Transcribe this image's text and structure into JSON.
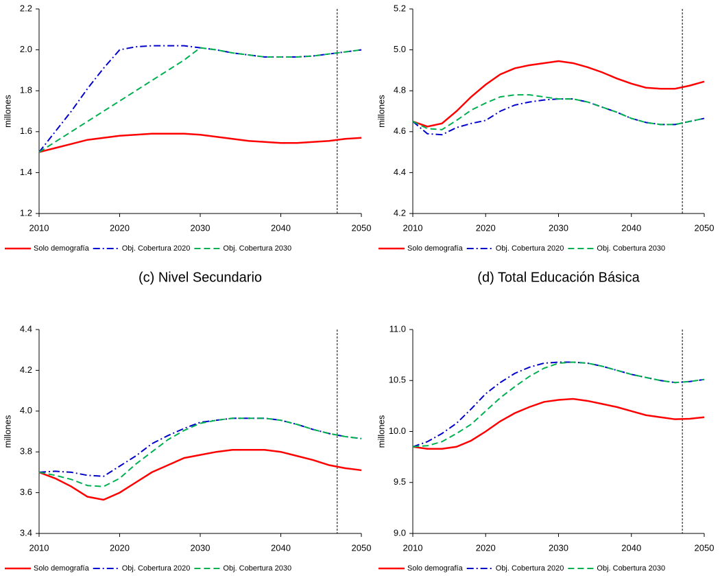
{
  "chart_data": [
    {
      "type": "line",
      "ylabel": "millones",
      "x": [
        2010,
        2012,
        2014,
        2016,
        2018,
        2020,
        2022,
        2024,
        2026,
        2028,
        2030,
        2032,
        2034,
        2036,
        2038,
        2040,
        2042,
        2044,
        2046,
        2048,
        2050
      ],
      "xlim": [
        2010,
        2050
      ],
      "xticks": [
        2010,
        2020,
        2030,
        2040,
        2050
      ],
      "ylim": [
        1.2,
        2.2
      ],
      "yticks": [
        1.2,
        1.4,
        1.6,
        1.8,
        {
          "value": 2,
          "label": "2.0"
        },
        2.2
      ],
      "vline_x": 2047,
      "series": [
        {
          "name": "Solo demografía",
          "color": "#ff0000",
          "line_style": "solid",
          "values": [
            1.5,
            1.52,
            1.54,
            1.56,
            1.57,
            1.58,
            1.585,
            1.59,
            1.59,
            1.59,
            1.585,
            1.575,
            1.565,
            1.555,
            1.55,
            1.545,
            1.545,
            1.55,
            1.555,
            1.565,
            1.57
          ]
        },
        {
          "name": "Obj. Cobertura 2020",
          "color": "#0000cc",
          "line_style": "dashdot",
          "values": [
            1.5,
            1.6,
            1.7,
            1.81,
            1.91,
            2.0,
            2.015,
            2.02,
            2.02,
            2.02,
            2.01,
            2.0,
            1.985,
            1.975,
            1.965,
            1.965,
            1.965,
            1.97,
            1.98,
            1.99,
            2.0
          ]
        },
        {
          "name": "Obj. Cobertura 2030",
          "color": "#00b050",
          "line_style": "dashed",
          "values": [
            1.5,
            1.55,
            1.6,
            1.65,
            1.7,
            1.75,
            1.8,
            1.85,
            1.9,
            1.95,
            2.01,
            2.0,
            1.985,
            1.975,
            1.965,
            1.965,
            1.965,
            1.97,
            1.98,
            1.99,
            2.0
          ]
        }
      ]
    },
    {
      "type": "line",
      "ylabel": "millones",
      "x": [
        2010,
        2012,
        2014,
        2016,
        2018,
        2020,
        2022,
        2024,
        2026,
        2028,
        2030,
        2032,
        2034,
        2036,
        2038,
        2040,
        2042,
        2044,
        2046,
        2048,
        2050
      ],
      "xlim": [
        2010,
        2050
      ],
      "xticks": [
        2010,
        2020,
        2030,
        2040,
        2050
      ],
      "ylim": [
        4.2,
        5.2
      ],
      "yticks": [
        4.2,
        4.4,
        4.6,
        4.8,
        {
          "value": 5,
          "label": "5.0"
        },
        5.2
      ],
      "vline_x": 2047,
      "series": [
        {
          "name": "Solo demografía",
          "color": "#ff0000",
          "line_style": "solid",
          "values": [
            4.65,
            4.625,
            4.64,
            4.7,
            4.77,
            4.83,
            4.88,
            4.91,
            4.925,
            4.935,
            4.945,
            4.935,
            4.915,
            4.89,
            4.86,
            4.835,
            4.815,
            4.81,
            4.81,
            4.825,
            4.845
          ]
        },
        {
          "name": "Obj. Cobertura 2020",
          "color": "#0000cc",
          "line_style": "dashdot",
          "values": [
            4.65,
            4.59,
            4.585,
            4.62,
            4.64,
            4.655,
            4.7,
            4.73,
            4.745,
            4.755,
            4.76,
            4.76,
            4.745,
            4.72,
            4.695,
            4.665,
            4.645,
            4.635,
            4.635,
            4.65,
            4.665
          ]
        },
        {
          "name": "Obj. Cobertura 2030",
          "color": "#00b050",
          "line_style": "dashed",
          "values": [
            4.65,
            4.615,
            4.61,
            4.655,
            4.705,
            4.74,
            4.77,
            4.78,
            4.78,
            4.77,
            4.76,
            4.76,
            4.745,
            4.72,
            4.695,
            4.665,
            4.645,
            4.635,
            4.635,
            4.65,
            4.665
          ]
        }
      ]
    },
    {
      "type": "line",
      "title": "(c) Nivel Secundario",
      "ylabel": "millones",
      "x": [
        2010,
        2012,
        2014,
        2016,
        2018,
        2020,
        2022,
        2024,
        2026,
        2028,
        2030,
        2032,
        2034,
        2036,
        2038,
        2040,
        2042,
        2044,
        2046,
        2048,
        2050
      ],
      "xlim": [
        2010,
        2050
      ],
      "xticks": [
        2010,
        2020,
        2030,
        2040,
        2050
      ],
      "ylim": [
        3.4,
        4.4
      ],
      "yticks": [
        3.4,
        3.6,
        3.8,
        {
          "value": 4,
          "label": "4.0"
        },
        4.2,
        4.4
      ],
      "vline_x": 2047,
      "series": [
        {
          "name": "Solo demografía",
          "color": "#ff0000",
          "line_style": "solid",
          "values": [
            3.7,
            3.67,
            3.63,
            3.58,
            3.565,
            3.6,
            3.65,
            3.7,
            3.735,
            3.77,
            3.785,
            3.8,
            3.81,
            3.81,
            3.81,
            3.8,
            3.78,
            3.76,
            3.735,
            3.72,
            3.71
          ]
        },
        {
          "name": "Obj. Cobertura 2020",
          "color": "#0000cc",
          "line_style": "dashdot",
          "values": [
            3.7,
            3.705,
            3.7,
            3.685,
            3.68,
            3.73,
            3.78,
            3.84,
            3.88,
            3.915,
            3.945,
            3.955,
            3.965,
            3.965,
            3.965,
            3.955,
            3.935,
            3.91,
            3.89,
            3.875,
            3.865
          ]
        },
        {
          "name": "Obj. Cobertura 2030",
          "color": "#00b050",
          "line_style": "dashed",
          "values": [
            3.7,
            3.685,
            3.665,
            3.635,
            3.63,
            3.67,
            3.74,
            3.8,
            3.86,
            3.905,
            3.94,
            3.955,
            3.965,
            3.965,
            3.965,
            3.955,
            3.935,
            3.91,
            3.89,
            3.875,
            3.865
          ]
        }
      ]
    },
    {
      "type": "line",
      "title": "(d) Total Educación Básica",
      "ylabel": "millones",
      "x": [
        2010,
        2012,
        2014,
        2016,
        2018,
        2020,
        2022,
        2024,
        2026,
        2028,
        2030,
        2032,
        2034,
        2036,
        2038,
        2040,
        2042,
        2044,
        2046,
        2048,
        2050
      ],
      "xlim": [
        2010,
        2050
      ],
      "xticks": [
        2010,
        2020,
        2030,
        2040,
        2050
      ],
      "ylim": [
        9,
        11
      ],
      "yticks": [
        {
          "value": 9,
          "label": "9.0"
        },
        9.5,
        {
          "value": 10,
          "label": "10.0"
        },
        10.5,
        {
          "value": 11,
          "label": "11.0"
        }
      ],
      "vline_x": 2047,
      "series": [
        {
          "name": "Solo demografía",
          "color": "#ff0000",
          "line_style": "solid",
          "values": [
            9.85,
            9.83,
            9.83,
            9.85,
            9.91,
            10.0,
            10.1,
            10.18,
            10.24,
            10.29,
            10.31,
            10.32,
            10.3,
            10.27,
            10.24,
            10.2,
            10.16,
            10.14,
            10.12,
            10.125,
            10.14
          ]
        },
        {
          "name": "Obj. Cobertura 2020",
          "color": "#0000cc",
          "line_style": "dashdot",
          "values": [
            9.85,
            9.9,
            9.98,
            10.08,
            10.22,
            10.37,
            10.48,
            10.57,
            10.63,
            10.67,
            10.68,
            10.68,
            10.67,
            10.64,
            10.6,
            10.56,
            10.53,
            10.5,
            10.48,
            10.49,
            10.51
          ]
        },
        {
          "name": "Obj. Cobertura 2030",
          "color": "#00b050",
          "line_style": "dashed",
          "values": [
            9.85,
            9.86,
            9.9,
            9.98,
            10.07,
            10.2,
            10.33,
            10.44,
            10.54,
            10.62,
            10.67,
            10.68,
            10.67,
            10.64,
            10.6,
            10.56,
            10.53,
            10.5,
            10.48,
            10.49,
            10.51
          ]
        }
      ]
    }
  ]
}
